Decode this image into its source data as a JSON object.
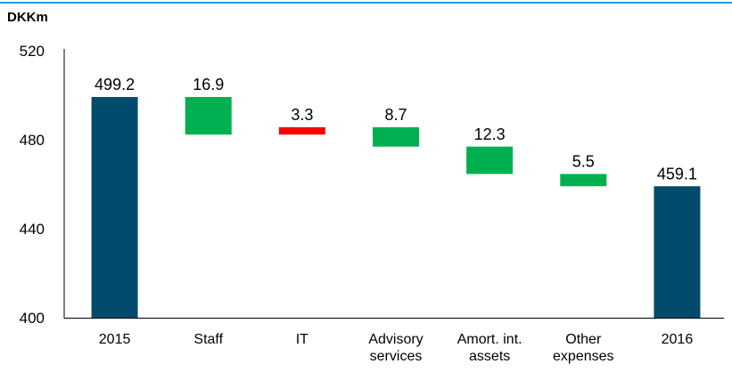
{
  "chart_data": {
    "type": "waterfall",
    "unit_label": "DKKm",
    "categories": [
      "2015",
      "Staff",
      "IT",
      "Advisory services",
      "Amort. int. assets",
      "Other expenses",
      "2016"
    ],
    "values": [
      499.2,
      -16.9,
      3.3,
      -8.7,
      -12.3,
      -5.5,
      459.1
    ],
    "value_labels": [
      "499.2",
      "16.9",
      "3.3",
      "8.7",
      "12.3",
      "5.5",
      "459.1"
    ],
    "totals": [
      true,
      false,
      false,
      false,
      false,
      false,
      true
    ],
    "colors": {
      "total": "#004b6b",
      "decrease": "#00b050",
      "increase": "#ff0000"
    },
    "ylim": [
      400,
      520
    ],
    "yticks": [
      400,
      440,
      480,
      520
    ],
    "grid": false
  }
}
